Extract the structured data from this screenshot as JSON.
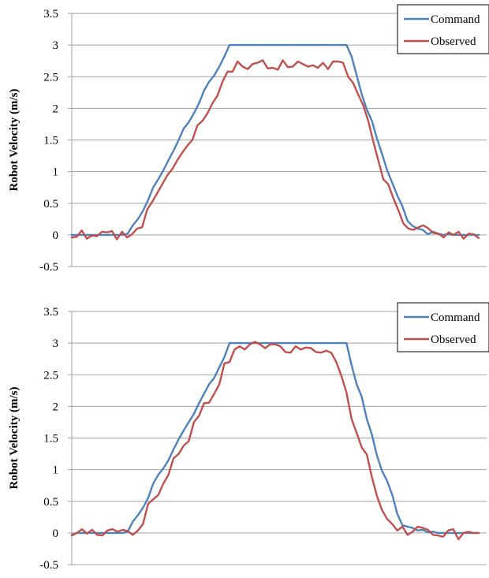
{
  "chart_data": [
    {
      "type": "line",
      "ylabel": "Robot Velocity (m/s)",
      "xlabel": "",
      "ylim": [
        -0.5,
        3.5
      ],
      "yticks": [
        "3.5",
        "3",
        "2.5",
        "2",
        "1.5",
        "1",
        "0.5",
        "0",
        "-0.5"
      ],
      "grid": true,
      "legend_position": "top-right",
      "series": [
        {
          "name": "Command",
          "color": "#4f81bd",
          "values": [
            0,
            0,
            0,
            0,
            0,
            0,
            0,
            0,
            0,
            0,
            0,
            0.02,
            0.15,
            0.25,
            0.38,
            0.55,
            0.75,
            0.88,
            1.02,
            1.18,
            1.33,
            1.5,
            1.68,
            1.78,
            1.92,
            2.08,
            2.28,
            2.42,
            2.52,
            2.66,
            2.82,
            3,
            3,
            3,
            3,
            3,
            3,
            3,
            3,
            3,
            3,
            3,
            3,
            3,
            3,
            3,
            3,
            3,
            3,
            3,
            3,
            3,
            3,
            3,
            3,
            2.82,
            2.52,
            2.22,
            1.98,
            1.8,
            1.52,
            1.28,
            1.02,
            0.82,
            0.62,
            0.45,
            0.22,
            0.14,
            0.1,
            0.08,
            0.01,
            0.05,
            0.02,
            0,
            0.01,
            0,
            0,
            0,
            0,
            0,
            0
          ]
        },
        {
          "name": "Observed",
          "color": "#c0504d",
          "values": [
            -0.04,
            -0.03,
            0.07,
            -0.06,
            -0.01,
            -0.02,
            0.05,
            0.04,
            0.06,
            -0.07,
            0.05,
            -0.04,
            0.01,
            0.1,
            0.12,
            0.4,
            0.52,
            0.66,
            0.8,
            0.94,
            1.04,
            1.18,
            1.3,
            1.41,
            1.5,
            1.73,
            1.8,
            1.92,
            2.08,
            2.2,
            2.42,
            2.58,
            2.58,
            2.74,
            2.66,
            2.62,
            2.7,
            2.72,
            2.76,
            2.63,
            2.64,
            2.61,
            2.76,
            2.65,
            2.66,
            2.74,
            2.7,
            2.66,
            2.68,
            2.64,
            2.72,
            2.62,
            2.74,
            2.74,
            2.72,
            2.5,
            2.4,
            2.22,
            2.05,
            1.8,
            1.48,
            1.18,
            0.88,
            0.8,
            0.58,
            0.39,
            0.18,
            0.1,
            0.08,
            0.12,
            0.15,
            0.1,
            0.03,
            0.02,
            -0.04,
            0.04,
            0,
            0.05,
            -0.06,
            0.02,
            0.01,
            -0.05
          ]
        }
      ]
    },
    {
      "type": "line",
      "ylabel": "Robot Velocity (m/s)",
      "xlabel": "",
      "ylim": [
        -0.5,
        3.5
      ],
      "yticks": [
        "3.5",
        "3",
        "2.5",
        "2",
        "1.5",
        "1",
        "0.5",
        "0",
        "-0.5"
      ],
      "grid": true,
      "legend_position": "top-right",
      "series": [
        {
          "name": "Command",
          "color": "#4f81bd",
          "values": [
            -0.03,
            0,
            0,
            0,
            0,
            0,
            0,
            0,
            0,
            0,
            0,
            0.02,
            0.18,
            0.28,
            0.4,
            0.55,
            0.78,
            0.92,
            1.02,
            1.15,
            1.32,
            1.48,
            1.62,
            1.75,
            1.88,
            2.05,
            2.2,
            2.35,
            2.45,
            2.62,
            2.78,
            3,
            3,
            3,
            3,
            3,
            3,
            3,
            3,
            3,
            3,
            3,
            3,
            3,
            3,
            3,
            3,
            3,
            3,
            3,
            3,
            3,
            3,
            3,
            3,
            2.65,
            2.35,
            2.15,
            1.8,
            1.55,
            1.22,
            0.98,
            0.82,
            0.6,
            0.3,
            0.12,
            0.1,
            0.08,
            0.04,
            0.05,
            0.01,
            0.02,
            0,
            0,
            0,
            0,
            0,
            0,
            0,
            0,
            0
          ]
        },
        {
          "name": "Observed",
          "color": "#c0504d",
          "values": [
            -0.04,
            0,
            0.06,
            -0.01,
            0.05,
            -0.03,
            -0.04,
            0.04,
            0.06,
            0.02,
            0.05,
            0.03,
            -0.03,
            0.04,
            0.14,
            0.46,
            0.53,
            0.6,
            0.78,
            0.92,
            1.18,
            1.25,
            1.38,
            1.45,
            1.75,
            1.85,
            2.05,
            2.06,
            2.2,
            2.35,
            2.68,
            2.7,
            2.9,
            2.95,
            2.9,
            2.98,
            3.02,
            2.98,
            2.92,
            2.98,
            2.98,
            2.95,
            2.86,
            2.85,
            2.95,
            2.9,
            2.93,
            2.92,
            2.86,
            2.85,
            2.88,
            2.85,
            2.7,
            2.48,
            2.22,
            1.8,
            1.58,
            1.35,
            1.24,
            0.88,
            0.58,
            0.36,
            0.22,
            0.14,
            0.04,
            0.1,
            -0.03,
            0.02,
            0.1,
            0.08,
            0.05,
            -0.03,
            -0.04,
            -0.06,
            0.04,
            0.06,
            -0.1,
            0,
            0.02,
            0,
            0
          ]
        }
      ]
    }
  ]
}
